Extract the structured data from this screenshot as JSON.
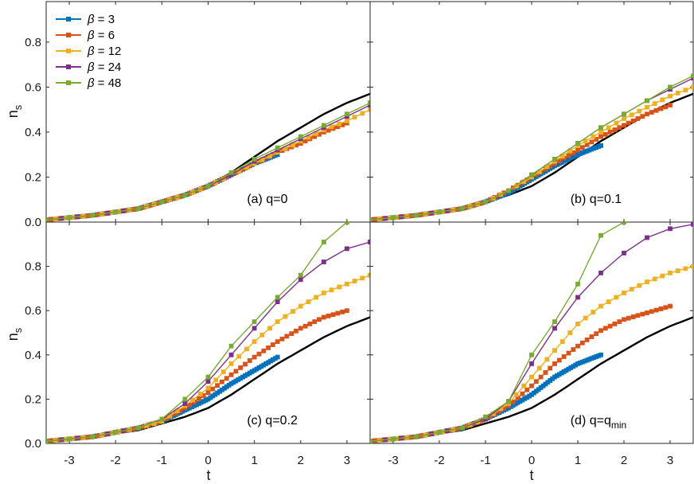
{
  "figure": {
    "ylabel": "n",
    "ylabel_sub": "s",
    "xlabel": "t",
    "reference_color": "#000000"
  },
  "legend": [
    {
      "symbol": "β",
      "eq": " = ",
      "value": "3",
      "color": "#0072BD"
    },
    {
      "symbol": "β",
      "eq": " = ",
      "value": "6",
      "color": "#D95319"
    },
    {
      "symbol": "β",
      "eq": " = ",
      "value": "12",
      "color": "#EDB120"
    },
    {
      "symbol": "β",
      "eq": " = ",
      "value": "24",
      "color": "#7E2F8E"
    },
    {
      "symbol": "β",
      "eq": " = ",
      "value": "48",
      "color": "#77AC30"
    }
  ],
  "chart_data": [
    {
      "type": "line",
      "panel": "(a)",
      "title": "(a) q=0",
      "title_sub": "",
      "xlim": [
        -3.5,
        3.5
      ],
      "ylim": [
        0,
        0.98
      ],
      "xticks": [
        "-3",
        "-2",
        "-1",
        "0",
        "1",
        "2",
        "3"
      ],
      "yticks": [
        "0.0",
        "0.2",
        "0.4",
        "0.6",
        "0.8"
      ],
      "reference": {
        "x": [
          -3.5,
          -2.5,
          -1.5,
          -1,
          -0.5,
          0,
          0.5,
          1,
          1.5,
          2,
          2.5,
          3,
          3.5
        ],
        "y": [
          0.01,
          0.03,
          0.06,
          0.09,
          0.12,
          0.16,
          0.22,
          0.29,
          0.36,
          0.42,
          0.48,
          0.53,
          0.57
        ]
      },
      "series": [
        {
          "name": "β = 3",
          "x": [
            -3.5,
            -2.5,
            -1.5,
            -1,
            -0.5,
            0,
            0.5,
            1,
            1.5
          ],
          "y": [
            0.01,
            0.03,
            0.06,
            0.09,
            0.12,
            0.16,
            0.21,
            0.26,
            0.3
          ]
        },
        {
          "name": "β = 6",
          "x": [
            -3.5,
            -2.5,
            -1.5,
            -1,
            -0.5,
            0,
            0.5,
            1,
            1.5,
            2,
            2.5,
            3
          ],
          "y": [
            0.01,
            0.03,
            0.06,
            0.09,
            0.12,
            0.16,
            0.21,
            0.26,
            0.31,
            0.35,
            0.4,
            0.44
          ]
        },
        {
          "name": "β = 12",
          "x": [
            -3.5,
            -2.5,
            -1.5,
            -1,
            -0.5,
            0,
            0.5,
            1,
            1.5,
            2,
            2.5,
            3,
            3.5
          ],
          "y": [
            0.01,
            0.03,
            0.06,
            0.09,
            0.12,
            0.16,
            0.21,
            0.26,
            0.31,
            0.36,
            0.41,
            0.45,
            0.5
          ]
        },
        {
          "name": "β = 24",
          "x": [
            -3.5,
            -2.5,
            -1.5,
            -1,
            -0.5,
            0,
            0.5,
            1,
            1.5,
            2,
            2.5,
            3,
            3.5
          ],
          "y": [
            0.01,
            0.03,
            0.06,
            0.09,
            0.12,
            0.16,
            0.21,
            0.27,
            0.32,
            0.37,
            0.42,
            0.47,
            0.52
          ]
        },
        {
          "name": "β = 48",
          "x": [
            -3.5,
            -2.5,
            -1.5,
            -1,
            -0.5,
            0,
            0.5,
            1,
            1.5,
            2,
            2.5,
            3,
            3.5
          ],
          "y": [
            0.01,
            0.03,
            0.06,
            0.09,
            0.12,
            0.16,
            0.22,
            0.28,
            0.33,
            0.38,
            0.43,
            0.48,
            0.53
          ]
        }
      ]
    },
    {
      "type": "line",
      "panel": "(b)",
      "title": "(b) q=0.1",
      "title_sub": "",
      "xlim": [
        -3.5,
        3.5
      ],
      "ylim": [
        0,
        0.98
      ],
      "xticks": [
        "-3",
        "-2",
        "-1",
        "0",
        "1",
        "2",
        "3"
      ],
      "yticks": [
        "0.0",
        "0.2",
        "0.4",
        "0.6",
        "0.8"
      ],
      "reference": {
        "x": [
          -3.5,
          -2.5,
          -1.5,
          -1,
          -0.5,
          0,
          0.5,
          1,
          1.5,
          2,
          2.5,
          3,
          3.5
        ],
        "y": [
          0.01,
          0.03,
          0.06,
          0.09,
          0.12,
          0.16,
          0.22,
          0.29,
          0.36,
          0.42,
          0.48,
          0.53,
          0.57
        ]
      },
      "series": [
        {
          "name": "β = 3",
          "x": [
            -3.5,
            -2.5,
            -1.5,
            -1,
            -0.5,
            0,
            0.5,
            1,
            1.5
          ],
          "y": [
            0.01,
            0.03,
            0.06,
            0.09,
            0.13,
            0.19,
            0.25,
            0.3,
            0.34
          ]
        },
        {
          "name": "β = 6",
          "x": [
            -3.5,
            -2.5,
            -1.5,
            -1,
            -0.5,
            0,
            0.5,
            1,
            1.5,
            2,
            2.5,
            3
          ],
          "y": [
            0.01,
            0.03,
            0.06,
            0.09,
            0.14,
            0.2,
            0.26,
            0.32,
            0.38,
            0.43,
            0.48,
            0.52
          ]
        },
        {
          "name": "β = 12",
          "x": [
            -3.5,
            -2.5,
            -1.5,
            -1,
            -0.5,
            0,
            0.5,
            1,
            1.5,
            2,
            2.5,
            3,
            3.5
          ],
          "y": [
            0.01,
            0.03,
            0.06,
            0.09,
            0.14,
            0.2,
            0.27,
            0.34,
            0.4,
            0.46,
            0.51,
            0.56,
            0.6
          ]
        },
        {
          "name": "β = 24",
          "x": [
            -3.5,
            -2.5,
            -1.5,
            -1,
            -0.5,
            0,
            0.5,
            1,
            1.5,
            2,
            2.5,
            3,
            3.5
          ],
          "y": [
            0.01,
            0.03,
            0.06,
            0.09,
            0.14,
            0.21,
            0.28,
            0.35,
            0.42,
            0.48,
            0.54,
            0.59,
            0.64
          ]
        },
        {
          "name": "β = 48",
          "x": [
            -3.5,
            -2.5,
            -1.5,
            -1,
            -0.5,
            0,
            0.5,
            1,
            1.5,
            2,
            2.5,
            3,
            3.5
          ],
          "y": [
            0.01,
            0.03,
            0.06,
            0.09,
            0.14,
            0.21,
            0.28,
            0.35,
            0.42,
            0.48,
            0.54,
            0.6,
            0.65
          ]
        }
      ]
    },
    {
      "type": "line",
      "panel": "(c)",
      "title": "(c) q=0.2",
      "title_sub": "",
      "xlim": [
        -3.5,
        3.5
      ],
      "ylim": [
        0,
        1.0
      ],
      "xticks": [
        "-3",
        "-2",
        "-1",
        "0",
        "1",
        "2",
        "3"
      ],
      "yticks": [
        "0.0",
        "0.2",
        "0.4",
        "0.6",
        "0.8"
      ],
      "reference": {
        "x": [
          -3.5,
          -2.5,
          -1.5,
          -1,
          -0.5,
          0,
          0.5,
          1,
          1.5,
          2,
          2.5,
          3,
          3.5
        ],
        "y": [
          0.01,
          0.03,
          0.06,
          0.09,
          0.12,
          0.16,
          0.22,
          0.29,
          0.36,
          0.42,
          0.48,
          0.53,
          0.57
        ]
      },
      "series": [
        {
          "name": "β = 3",
          "x": [
            -3.5,
            -2.5,
            -1.5,
            -1,
            -0.5,
            0,
            0.5,
            1,
            1.5
          ],
          "y": [
            0.01,
            0.03,
            0.07,
            0.1,
            0.15,
            0.2,
            0.27,
            0.33,
            0.39
          ]
        },
        {
          "name": "β = 6",
          "x": [
            -3.5,
            -2.5,
            -1.5,
            -1,
            -0.5,
            0,
            0.5,
            1,
            1.5,
            2,
            2.5,
            3
          ],
          "y": [
            0.01,
            0.03,
            0.07,
            0.1,
            0.16,
            0.23,
            0.31,
            0.39,
            0.46,
            0.52,
            0.57,
            0.6
          ]
        },
        {
          "name": "β = 12",
          "x": [
            -3.5,
            -2.5,
            -1.5,
            -1,
            -0.5,
            0,
            0.5,
            1,
            1.5,
            2,
            2.5,
            3,
            3.5
          ],
          "y": [
            0.01,
            0.03,
            0.07,
            0.1,
            0.17,
            0.25,
            0.36,
            0.46,
            0.55,
            0.62,
            0.68,
            0.72,
            0.76
          ]
        },
        {
          "name": "β = 24",
          "x": [
            -3.5,
            -2.5,
            -1.5,
            -1,
            -0.5,
            0,
            0.5,
            1,
            1.5,
            2,
            2.5,
            3,
            3.5
          ],
          "y": [
            0.01,
            0.03,
            0.07,
            0.11,
            0.18,
            0.28,
            0.4,
            0.52,
            0.64,
            0.74,
            0.82,
            0.88,
            0.91
          ]
        },
        {
          "name": "β = 48",
          "x": [
            -3.5,
            -2.5,
            -1.5,
            -1,
            -0.5,
            0,
            0.5,
            1,
            1.5,
            2,
            2.5,
            3
          ],
          "y": [
            0.01,
            0.03,
            0.07,
            0.11,
            0.2,
            0.3,
            0.44,
            0.55,
            0.66,
            0.76,
            0.91,
            1.0
          ]
        }
      ]
    },
    {
      "type": "line",
      "panel": "(d)",
      "title": "(d) q=q",
      "title_sub": "min",
      "xlim": [
        -3.5,
        3.5
      ],
      "ylim": [
        0,
        1.0
      ],
      "xticks": [
        "-3",
        "-2",
        "-1",
        "0",
        "1",
        "2",
        "3"
      ],
      "yticks": [
        "0.0",
        "0.2",
        "0.4",
        "0.6",
        "0.8"
      ],
      "reference": {
        "x": [
          -3.5,
          -2.5,
          -1.5,
          -1,
          -0.5,
          0,
          0.5,
          1,
          1.5,
          2,
          2.5,
          3,
          3.5
        ],
        "y": [
          0.01,
          0.03,
          0.06,
          0.09,
          0.12,
          0.16,
          0.22,
          0.29,
          0.36,
          0.42,
          0.48,
          0.53,
          0.57
        ]
      },
      "series": [
        {
          "name": "β = 3",
          "x": [
            -3.5,
            -2.5,
            -1.5,
            -1,
            -0.5,
            0,
            0.5,
            1,
            1.5
          ],
          "y": [
            0.01,
            0.03,
            0.07,
            0.11,
            0.16,
            0.22,
            0.3,
            0.36,
            0.4
          ]
        },
        {
          "name": "β = 6",
          "x": [
            -3.5,
            -2.5,
            -1.5,
            -1,
            -0.5,
            0,
            0.5,
            1,
            1.5,
            2,
            2.5,
            3
          ],
          "y": [
            0.01,
            0.03,
            0.07,
            0.11,
            0.17,
            0.26,
            0.36,
            0.44,
            0.51,
            0.56,
            0.59,
            0.62
          ]
        },
        {
          "name": "β = 12",
          "x": [
            -3.5,
            -2.5,
            -1.5,
            -1,
            -0.5,
            0,
            0.5,
            1,
            1.5,
            2,
            2.5,
            3,
            3.5
          ],
          "y": [
            0.01,
            0.03,
            0.07,
            0.11,
            0.18,
            0.3,
            0.42,
            0.54,
            0.62,
            0.68,
            0.73,
            0.77,
            0.8
          ]
        },
        {
          "name": "β = 24",
          "x": [
            -3.5,
            -2.5,
            -1.5,
            -1,
            -0.5,
            0,
            0.5,
            1,
            1.5,
            2,
            2.5,
            3,
            3.5
          ],
          "y": [
            0.01,
            0.03,
            0.07,
            0.11,
            0.19,
            0.36,
            0.52,
            0.66,
            0.77,
            0.86,
            0.93,
            0.97,
            0.99
          ]
        },
        {
          "name": "β = 48",
          "x": [
            -3.5,
            -2.5,
            -1.5,
            -1,
            -0.5,
            0,
            0.5,
            1,
            1.5,
            2
          ],
          "y": [
            0.01,
            0.03,
            0.07,
            0.12,
            0.19,
            0.4,
            0.55,
            0.72,
            0.94,
            1.0
          ]
        }
      ]
    }
  ]
}
